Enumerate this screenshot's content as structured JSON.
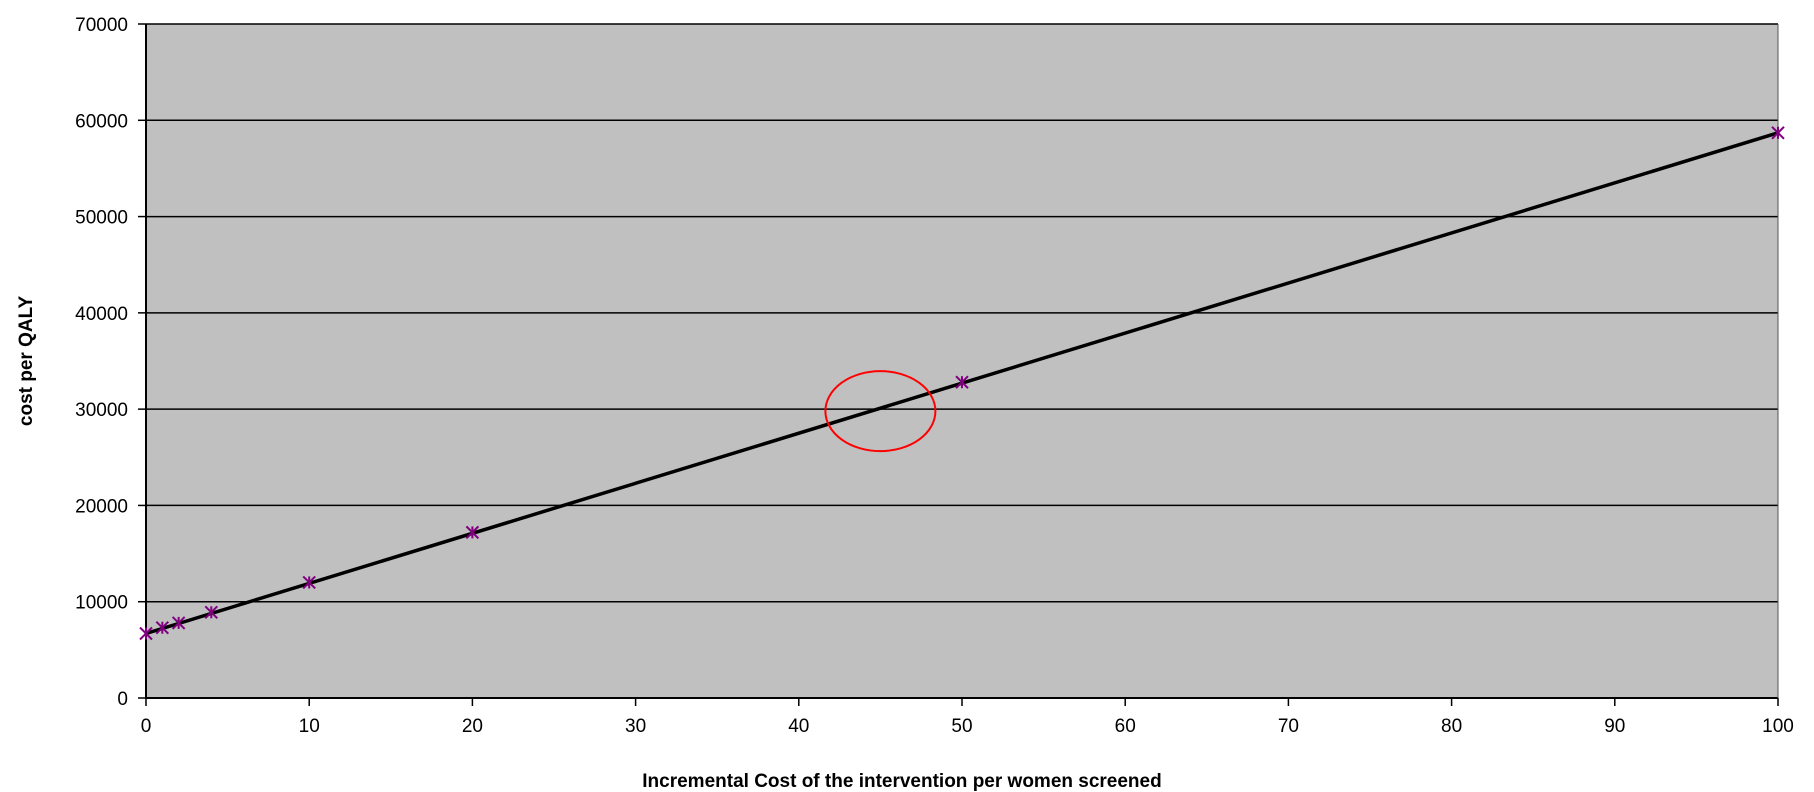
{
  "chart_data": {
    "type": "scatter",
    "title": "",
    "xlabel": "Incremental Cost of the intervention per women screened",
    "ylabel": "cost per QALY",
    "xlim": [
      0,
      100
    ],
    "ylim": [
      0,
      70000
    ],
    "x_ticks": [
      0,
      10,
      20,
      30,
      40,
      50,
      60,
      70,
      80,
      90,
      100
    ],
    "y_ticks": [
      0,
      10000,
      20000,
      30000,
      40000,
      50000,
      60000,
      70000
    ],
    "grid": "horizontal",
    "legend": "none",
    "series": [
      {
        "x": [
          0,
          1,
          2,
          4,
          10,
          20,
          50,
          100
        ],
        "y": [
          6700,
          7300,
          7800,
          8900,
          12000,
          17200,
          32800,
          58700
        ],
        "marker": "asterisk",
        "color": "#800080"
      }
    ],
    "trendline": {
      "x": [
        0,
        100
      ],
      "y": [
        6700,
        58700
      ],
      "color": "#000000"
    },
    "annotation": {
      "type": "ellipse",
      "x": 45,
      "y": 30000,
      "color": "#ff0000"
    },
    "plot_background": "#c0c0c0"
  }
}
